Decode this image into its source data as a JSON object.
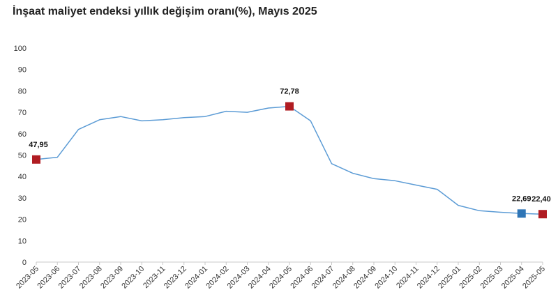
{
  "chart_data": {
    "type": "line",
    "title": "İnşaat maliyet endeksi yıllık değişim oranı(%), Mayıs 2025",
    "xlabel": "",
    "ylabel": "",
    "ylim": [
      0,
      100
    ],
    "yticks": [
      0,
      10,
      20,
      30,
      40,
      50,
      60,
      70,
      80,
      90,
      100
    ],
    "grid": false,
    "categories": [
      "2023-05",
      "2023-06",
      "2023-07",
      "2023-08",
      "2023-09",
      "2023-10",
      "2023-11",
      "2023-12",
      "2024-01",
      "2024-02",
      "2024-03",
      "2024-04",
      "2024-05",
      "2024-06",
      "2024-07",
      "2024-08",
      "2024-09",
      "2024-10",
      "2024-11",
      "2024-12",
      "2025-01",
      "2025-02",
      "2025-03",
      "2025-04",
      "2025-05"
    ],
    "series": [
      {
        "color": "#5b9bd5",
        "values": [
          47.95,
          49.0,
          62.0,
          66.5,
          68.0,
          66.0,
          66.5,
          67.5,
          68.0,
          70.5,
          70.0,
          72.0,
          72.78,
          66.0,
          46.0,
          41.5,
          39.0,
          38.0,
          36.0,
          34.0,
          26.5,
          24.0,
          23.3,
          22.69,
          22.4
        ]
      }
    ],
    "highlighted_points": [
      {
        "index": 0,
        "label": "47,95",
        "color": "#b01c22"
      },
      {
        "index": 12,
        "label": "72,78",
        "color": "#b01c22"
      },
      {
        "index": 23,
        "label": "22,69",
        "color": "#2e75b6"
      },
      {
        "index": 24,
        "label": "22,40",
        "color": "#b01c22"
      }
    ]
  }
}
